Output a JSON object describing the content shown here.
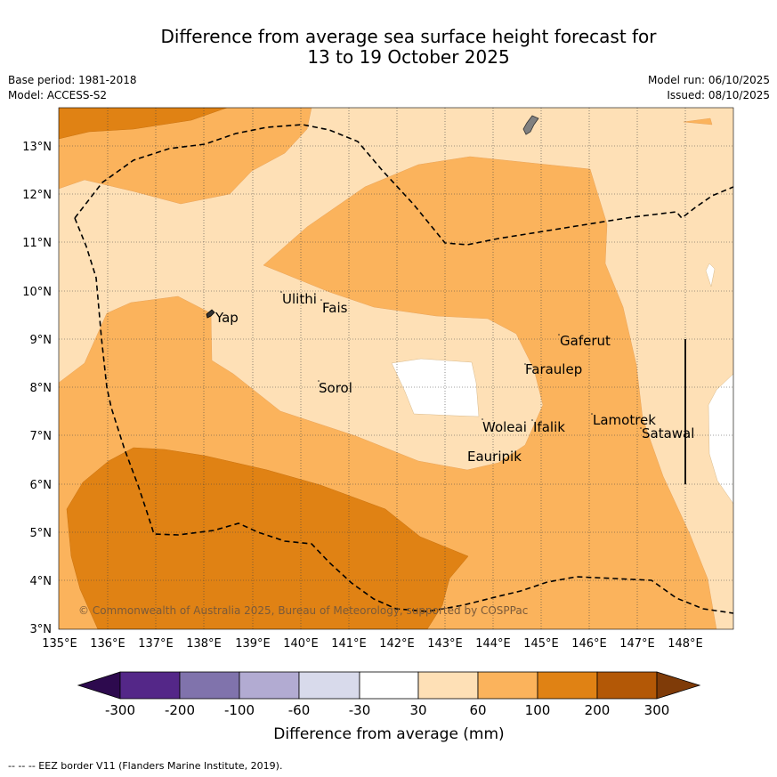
{
  "header": {
    "title_line1": "Difference from average sea surface height forecast for",
    "title_line2": "13 to 19 October 2025",
    "base_period": "Base period: 1981-2018",
    "model": "Model: ACCESS-S2",
    "model_run": "Model run: 06/10/2025",
    "issued": "Issued: 08/10/2025"
  },
  "map": {
    "lat_labels": [
      "13°N",
      "12°N",
      "11°N",
      "10°N",
      "9°N",
      "8°N",
      "7°N",
      "6°N",
      "5°N",
      "4°N",
      "3°N"
    ],
    "lon_labels": [
      "135°E",
      "136°E",
      "137°E",
      "138°E",
      "139°E",
      "140°E",
      "141°E",
      "142°E",
      "143°E",
      "144°E",
      "145°E",
      "146°E",
      "147°E",
      "148°E"
    ],
    "places": {
      "yap": "Yap",
      "ulithi": "Ulithi",
      "fais": "Fais",
      "gaferut": "Gaferut",
      "faraulep": "Faraulep",
      "sorol": "Sorol",
      "woleai": "Woleai",
      "ifalik": "Ifalik",
      "lamotrek": "Lamotrek",
      "satawal": "Satawal",
      "eauripik": "Eauripik"
    },
    "copyright": "© Commonwealth of Australia 2025, Bureau of Meteorology, supported by COSPPac"
  },
  "colorbar": {
    "ticks": [
      "-300",
      "-200",
      "-100",
      "-60",
      "-30",
      "30",
      "60",
      "100",
      "200",
      "300"
    ],
    "label": "Difference from average (mm)",
    "colors": {
      "below_min": "#2d0a4e",
      "c1": "#542788",
      "c2": "#8073ac",
      "c3": "#b2abd2",
      "c4": "#d8daeb",
      "c5": "#ffffff",
      "c6": "#fee0b6",
      "c7": "#fbb35c",
      "c8": "#e08214",
      "c9": "#b35806",
      "above_max": "#7f3b08"
    }
  },
  "footer": {
    "eez_legend": "-- -- -- EEZ border V11 (Flanders Marine Institute, 2019)."
  }
}
